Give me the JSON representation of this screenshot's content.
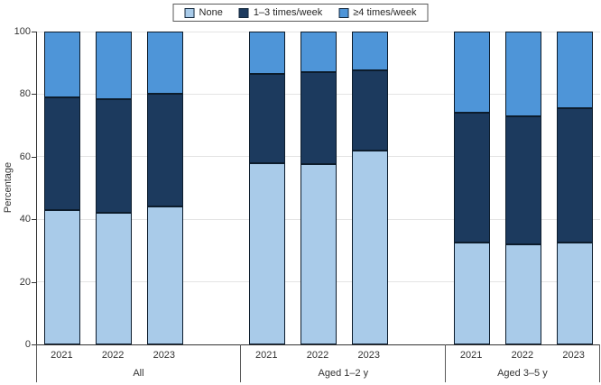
{
  "y_axis": {
    "label": "Percentage",
    "ticks": [
      0,
      20,
      40,
      60,
      80,
      100
    ]
  },
  "legend": {
    "position": "top-center",
    "items": [
      {
        "label": "None",
        "color": "#A9CBE9"
      },
      {
        "label": "1–3 times/week",
        "color": "#1C3A5E"
      },
      {
        "label": "≥4 times/week",
        "color": "#4E95D8"
      }
    ]
  },
  "chart_data": {
    "type": "bar",
    "stacked": true,
    "title": "",
    "xlabel": "",
    "ylabel": "Percentage",
    "ylim": [
      0,
      100
    ],
    "yticks": [
      0,
      20,
      40,
      60,
      80,
      100
    ],
    "grid": true,
    "legend_position": "top",
    "groups": [
      {
        "label": "All",
        "categories": [
          "2021",
          "2022",
          "2023"
        ]
      },
      {
        "label": "Aged 1–2 y",
        "categories": [
          "2021",
          "2022",
          "2023"
        ]
      },
      {
        "label": "Aged 3–5 y",
        "categories": [
          "2021",
          "2022",
          "2023"
        ]
      }
    ],
    "series": [
      {
        "name": "None",
        "color": "#A9CBE9",
        "values": [
          [
            43,
            42,
            44
          ],
          [
            58,
            57.5,
            62
          ],
          [
            32.5,
            32,
            32.5
          ]
        ]
      },
      {
        "name": "1–3 times/week",
        "color": "#1C3A5E",
        "values": [
          [
            36,
            36.5,
            36
          ],
          [
            28.5,
            29.5,
            25.5
          ],
          [
            41.5,
            41,
            43
          ]
        ]
      },
      {
        "name": "≥4 times/week",
        "color": "#4E95D8",
        "values": [
          [
            21,
            21.5,
            20
          ],
          [
            13.5,
            13,
            12.5
          ],
          [
            26,
            27,
            24.5
          ]
        ]
      }
    ]
  },
  "colors": {
    "axis": "#333333",
    "gridline": "#e4e4e4",
    "segment_border": "#0c1c2c",
    "legend_border": "#595959"
  }
}
